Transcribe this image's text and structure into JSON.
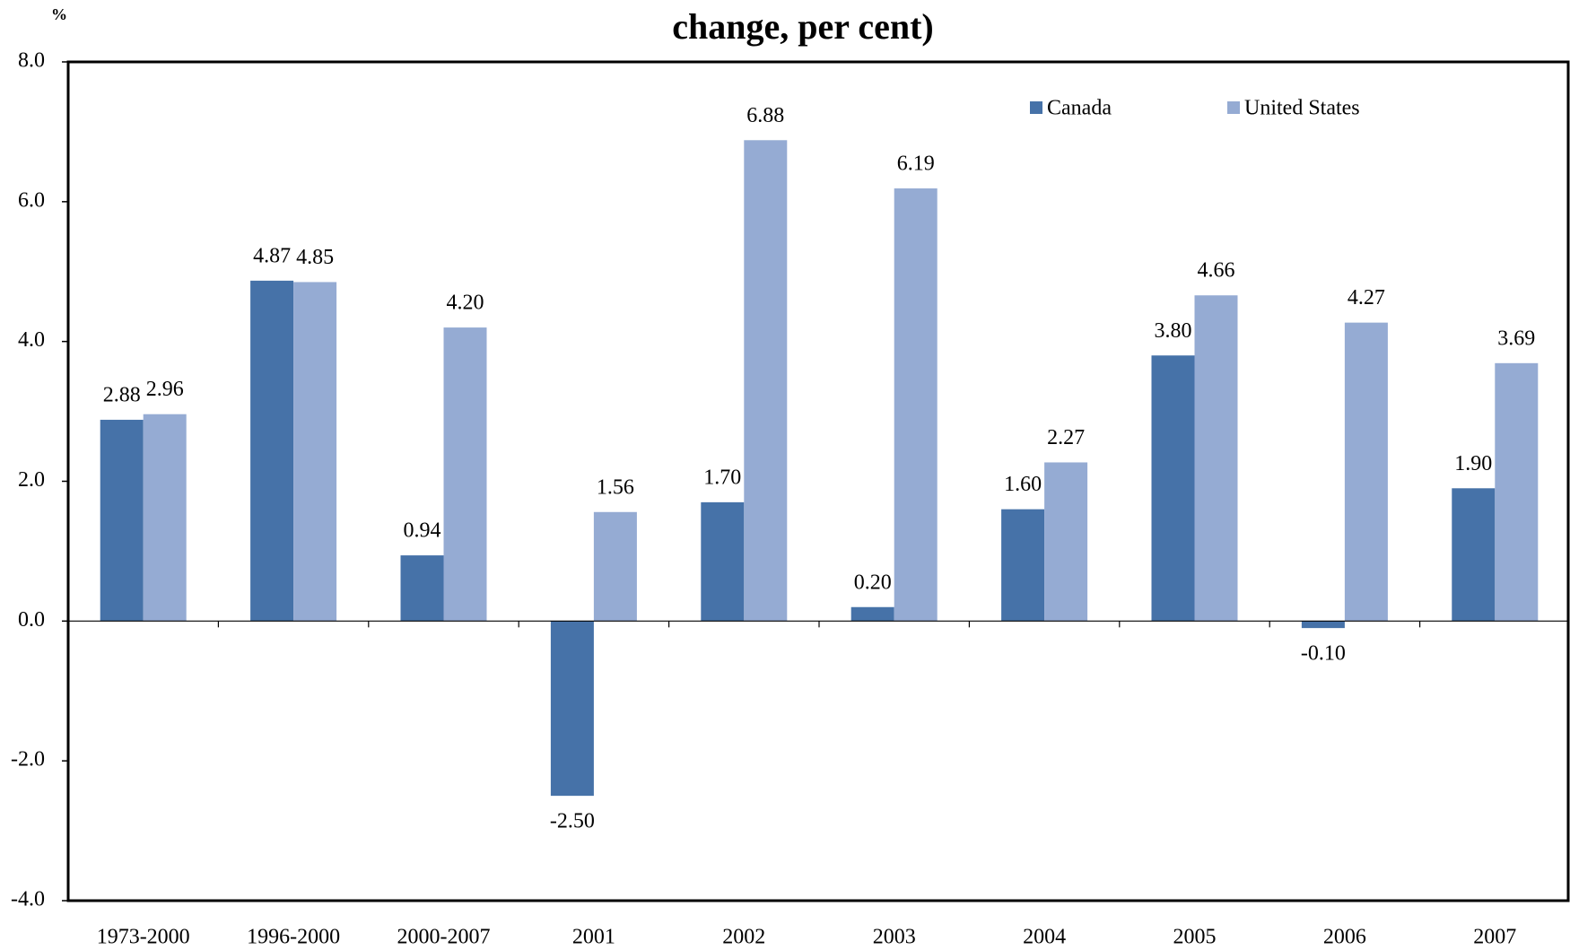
{
  "chart_data": {
    "type": "bar",
    "title": "change, per cent)",
    "y_axis_label": "%",
    "categories": [
      "1973-2000",
      "1996-2000",
      "2000-2007",
      "2001",
      "2002",
      "2003",
      "2004",
      "2005",
      "2006",
      "2007"
    ],
    "series": [
      {
        "name": "Canada",
        "color": "#4672a8",
        "values": [
          2.88,
          4.87,
          0.94,
          -2.5,
          1.7,
          0.2,
          1.6,
          3.8,
          -0.1,
          1.9
        ],
        "value_labels": [
          "2.88",
          "4.87",
          "0.94",
          "-2.50",
          "1.70",
          "0.20",
          "1.60",
          "3.80",
          "-0.10",
          "1.90"
        ]
      },
      {
        "name": "United States",
        "color": "#95abd3",
        "values": [
          2.96,
          4.85,
          4.2,
          1.56,
          6.88,
          6.19,
          2.27,
          4.66,
          4.27,
          3.69
        ],
        "value_labels": [
          "2.96",
          "4.85",
          "4.20",
          "1.56",
          "6.88",
          "6.19",
          "2.27",
          "4.66",
          "4.27",
          "3.69"
        ]
      }
    ],
    "ylim": [
      -4,
      8
    ],
    "yticks": [
      {
        "value": -4,
        "label": "-4.0"
      },
      {
        "value": -2,
        "label": "-2.0"
      },
      {
        "value": 0,
        "label": "0.0"
      },
      {
        "value": 2,
        "label": "2.0"
      },
      {
        "value": 4,
        "label": "4.0"
      },
      {
        "value": 6,
        "label": "6.0"
      },
      {
        "value": 8,
        "label": "8.0"
      }
    ],
    "grid": false,
    "legend": "upper right"
  }
}
